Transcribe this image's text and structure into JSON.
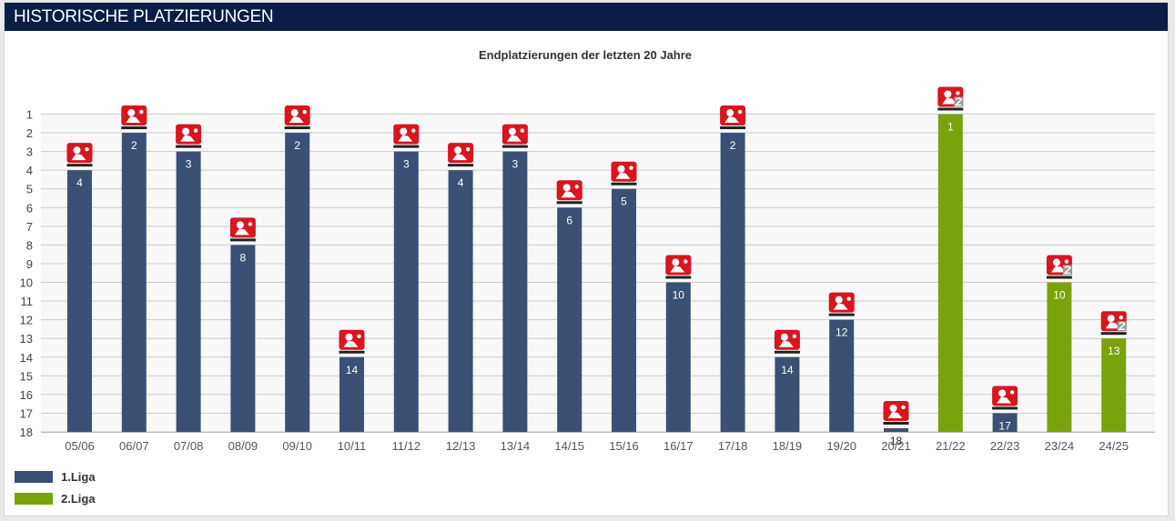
{
  "panel": {
    "title": "HISTORISCHE PLATZIERUNGEN"
  },
  "colors": {
    "header_bg": "#0b1d46",
    "liga1": "#3b5074",
    "liga2": "#7aa20a"
  },
  "chart_data": {
    "type": "bar",
    "title": "Endplatzierungen der letzten 20 Jahre",
    "xlabel": "",
    "ylabel": "",
    "ylim": [
      18,
      1
    ],
    "y_reversed": true,
    "y_ticks": [
      1,
      2,
      3,
      4,
      5,
      6,
      7,
      8,
      9,
      10,
      11,
      12,
      13,
      14,
      15,
      16,
      17,
      18
    ],
    "grid": true,
    "legend_position": "bottom-left",
    "categories": [
      "05/06",
      "06/07",
      "07/08",
      "08/09",
      "09/10",
      "10/11",
      "11/12",
      "12/13",
      "13/14",
      "14/15",
      "15/16",
      "16/17",
      "17/18",
      "18/19",
      "19/20",
      "20/21",
      "21/22",
      "22/23",
      "23/24",
      "24/25"
    ],
    "values": [
      4,
      2,
      3,
      8,
      2,
      14,
      3,
      4,
      3,
      6,
      5,
      10,
      2,
      14,
      12,
      18,
      1,
      17,
      10,
      13
    ],
    "league": [
      1,
      1,
      1,
      1,
      1,
      1,
      1,
      1,
      1,
      1,
      1,
      1,
      1,
      1,
      1,
      1,
      2,
      1,
      2,
      2
    ],
    "legend": [
      {
        "name": "1.Liga",
        "league": 1
      },
      {
        "name": "2.Liga",
        "league": 2
      }
    ]
  }
}
